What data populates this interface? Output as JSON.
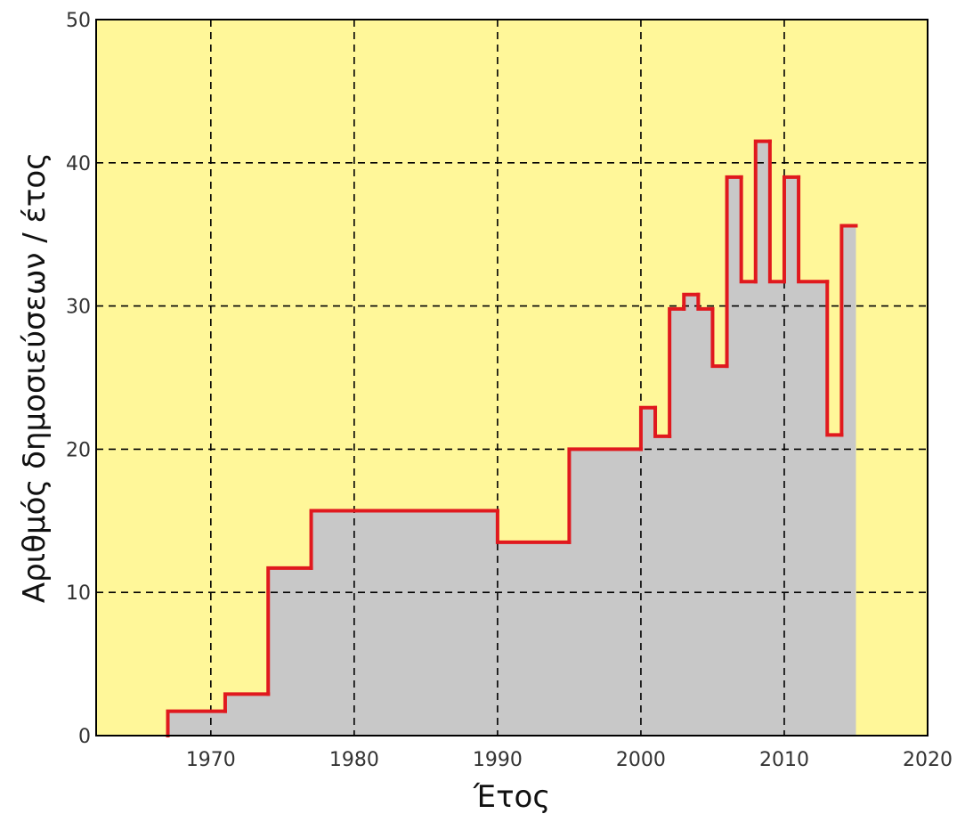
{
  "chart_data": {
    "type": "area",
    "step": true,
    "title": "",
    "xlabel": "Έτος",
    "ylabel": "Αριθμός δημοσιεύσεων / έτος",
    "xlim": [
      1962,
      2020
    ],
    "ylim": [
      0,
      50
    ],
    "xticks": [
      "1970",
      "1980",
      "1990",
      "2000",
      "2010",
      "2020"
    ],
    "yticks": [
      "0",
      "10",
      "20",
      "30",
      "40",
      "50"
    ],
    "grid": true,
    "colors": {
      "background": "#FFF799",
      "fill": "#C8C8C8",
      "line": "#E0191E",
      "grid": "#000000"
    },
    "series": [
      {
        "step_edges": [
          1967,
          1971,
          1974,
          1977,
          1990,
          1995,
          2000,
          2001,
          2002,
          2003,
          2004,
          2005,
          2006,
          2007,
          2008,
          2009,
          2010,
          2011,
          2013,
          2014,
          2015
        ],
        "values": [
          1.7,
          2.9,
          11.7,
          15.7,
          13.5,
          20.0,
          22.9,
          20.9,
          29.8,
          30.8,
          29.8,
          25.8,
          39.0,
          31.7,
          41.5,
          31.7,
          39.0,
          31.7,
          21.0,
          35.6
        ]
      }
    ]
  }
}
